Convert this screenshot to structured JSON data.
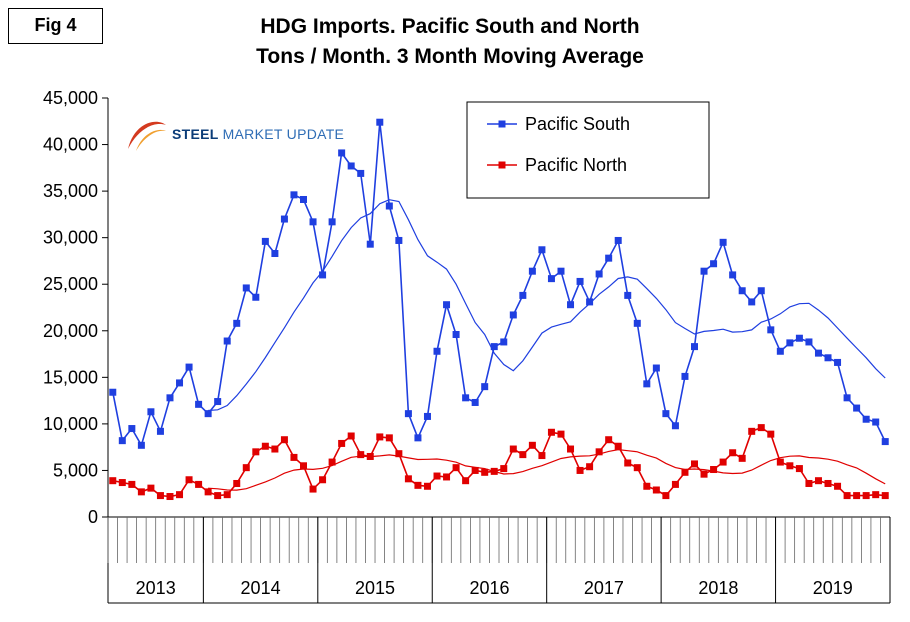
{
  "fig_label": "Fig 4",
  "title_line1": "HDG Imports. Pacific South and North",
  "title_line2": "Tons / Month. 3 Month Moving Average",
  "logo": {
    "word1": "STEEL",
    "word2": "MARKET UPDATE"
  },
  "colors": {
    "south": "#1f3fe0",
    "north": "#e00000",
    "south_ma": "#1f3fe0",
    "north_ma": "#e00000"
  },
  "chart_data": {
    "type": "line",
    "title": "HDG Imports. Pacific South and North Tons / Month. 3 Month Moving Average",
    "ylim": [
      0,
      45000
    ],
    "yticks": [
      0,
      5000,
      10000,
      15000,
      20000,
      25000,
      30000,
      35000,
      40000,
      45000
    ],
    "ytick_labels": [
      "0",
      "5,000",
      "10,000",
      "15,000",
      "20,000",
      "25,000",
      "30,000",
      "35,000",
      "40,000",
      "45,000"
    ],
    "years": [
      "2013",
      "2014",
      "2015",
      "2016",
      "2017",
      "2018",
      "2019"
    ],
    "grid": false,
    "legend_position": "top-right",
    "series": [
      {
        "name": "Pacific South",
        "values": [
          13400,
          8200,
          9500,
          7700,
          11300,
          9200,
          12800,
          14400,
          16100,
          12100,
          11100,
          12400,
          18900,
          20800,
          24600,
          23600,
          29600,
          28300,
          32000,
          34600,
          34100,
          31700,
          26000,
          31700,
          39100,
          37700,
          36900,
          29300,
          42400,
          33400,
          29700,
          11100,
          8500,
          10800,
          17800,
          22800,
          19600,
          12800,
          12300,
          14000,
          18300,
          18800,
          21700,
          23800,
          26400,
          28700,
          25600,
          26400,
          22800,
          25300,
          23100,
          26100,
          27800,
          29700,
          23800,
          20800,
          14300,
          16000,
          11100,
          9800,
          15100,
          18300,
          26400,
          27200,
          29500,
          26000,
          24300,
          23100,
          24300,
          20100,
          17800,
          18700,
          19200,
          18800,
          17600,
          17100,
          16600,
          12800,
          11700,
          10500,
          10200,
          8100
        ]
      },
      {
        "name": "Pacific North",
        "values": [
          3900,
          3700,
          3500,
          2700,
          3100,
          2300,
          2200,
          2400,
          4000,
          3500,
          2700,
          2300,
          2400,
          3600,
          5300,
          7000,
          7600,
          7300,
          8300,
          6400,
          5500,
          3000,
          4000,
          5900,
          7900,
          8700,
          6700,
          6500,
          8600,
          8500,
          6800,
          4100,
          3400,
          3300,
          4400,
          4300,
          5300,
          3900,
          5000,
          4800,
          4900,
          5200,
          7300,
          6700,
          7700,
          6600,
          9100,
          8900,
          7300,
          5000,
          5400,
          7000,
          8300,
          7600,
          5800,
          5300,
          3300,
          2900,
          2300,
          3500,
          4800,
          5700,
          4600,
          5100,
          5900,
          6900,
          6300,
          9200,
          9600,
          8900,
          5900,
          5500,
          5200,
          3600,
          3900,
          3600,
          3300,
          2300,
          2300,
          2300,
          2400,
          2300
        ]
      }
    ]
  }
}
